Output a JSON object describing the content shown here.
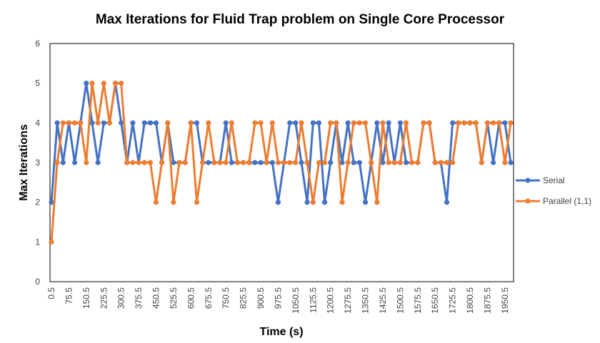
{
  "chart_data": {
    "type": "line",
    "title": "Max Iterations for Fluid Trap problem on Single Core Processor",
    "xlabel": "Time (s)",
    "ylabel": "Max Iterations",
    "ylim": [
      0,
      6
    ],
    "yticks": [
      "0",
      "1",
      "2",
      "3",
      "4",
      "5",
      "6"
    ],
    "x_start": 0.5,
    "x_step": 25,
    "x_tick_every": 3,
    "categories": [
      "0.5",
      "25.5",
      "50.5",
      "75.5",
      "100.5",
      "125.5",
      "150.5",
      "175.5",
      "200.5",
      "225.5",
      "250.5",
      "275.5",
      "300.5",
      "325.5",
      "350.5",
      "375.5",
      "400.5",
      "425.5",
      "450.5",
      "475.5",
      "500.5",
      "525.5",
      "550.5",
      "575.5",
      "600.5",
      "625.5",
      "650.5",
      "675.5",
      "700.5",
      "725.5",
      "750.5",
      "775.5",
      "800.5",
      "825.5",
      "850.5",
      "875.5",
      "900.5",
      "925.5",
      "950.5",
      "975.5",
      "1000.5",
      "1025.5",
      "1050.5",
      "1075.5",
      "1100.5",
      "1125.5",
      "1150.5",
      "1175.5",
      "1200.5",
      "1225.5",
      "1250.5",
      "1275.5",
      "1300.5",
      "1325.5",
      "1350.5",
      "1375.5",
      "1400.5",
      "1425.5",
      "1450.5",
      "1475.5",
      "1500.5",
      "1525.5",
      "1550.5",
      "1575.5",
      "1600.5",
      "1625.5",
      "1650.5",
      "1675.5",
      "1700.5",
      "1725.5",
      "1750.5",
      "1775.5",
      "1800.5",
      "1825.5",
      "1850.5",
      "1875.5",
      "1900.5",
      "1925.5",
      "1950.5",
      "1975.5"
    ],
    "series": [
      {
        "name": "Serial",
        "color": "#4472C4",
        "values": [
          2,
          4,
          3,
          4,
          3,
          4,
          5,
          4,
          3,
          4,
          4,
          5,
          4,
          3,
          4,
          3,
          4,
          4,
          4,
          3,
          4,
          3,
          3,
          3,
          4,
          4,
          3,
          3,
          3,
          3,
          4,
          3,
          3,
          3,
          3,
          3,
          3,
          3,
          3,
          2,
          3,
          4,
          4,
          3,
          2,
          4,
          4,
          2,
          3,
          4,
          3,
          4,
          3,
          3,
          2,
          3,
          4,
          3,
          4,
          3,
          4,
          3,
          3,
          3,
          4,
          4,
          3,
          3,
          2,
          4,
          4,
          4,
          4,
          4,
          3,
          4,
          3,
          4,
          4,
          3
        ]
      },
      {
        "name": "Parallel (1,1)",
        "color": "#ED7D31",
        "values": [
          1,
          3,
          4,
          4,
          4,
          4,
          3,
          5,
          4,
          5,
          4,
          5,
          5,
          3,
          3,
          3,
          3,
          3,
          2,
          3,
          4,
          2,
          3,
          3,
          4,
          2,
          3,
          4,
          3,
          3,
          3,
          4,
          3,
          3,
          3,
          4,
          4,
          3,
          4,
          3,
          3,
          3,
          3,
          4,
          3,
          2,
          3,
          3,
          4,
          4,
          2,
          3,
          4,
          4,
          4,
          3,
          2,
          4,
          3,
          3,
          3,
          4,
          3,
          3,
          4,
          4,
          3,
          3,
          3,
          3,
          4,
          4,
          4,
          4,
          3,
          4,
          4,
          4,
          3,
          4
        ]
      }
    ],
    "legend_position": "right",
    "grid": false
  }
}
